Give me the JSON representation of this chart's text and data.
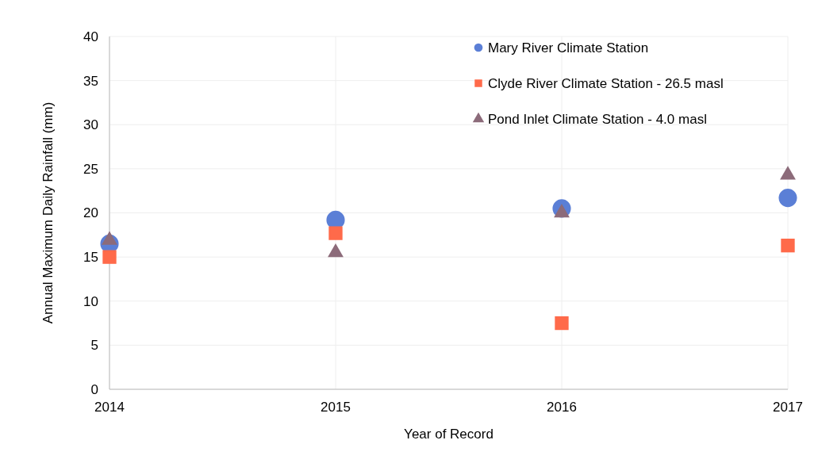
{
  "chart_data": {
    "type": "scatter",
    "xlabel": "Year of Record",
    "ylabel": "Annual Maximum Daily Rainfall (mm)",
    "x": [
      2014,
      2015,
      2016,
      2017
    ],
    "xlim": [
      2014,
      2017
    ],
    "xticks": [
      2014,
      2015,
      2016,
      2017
    ],
    "ylim": [
      0,
      40
    ],
    "yticks": [
      0,
      5,
      10,
      15,
      20,
      25,
      30,
      35,
      40
    ],
    "grid": true,
    "legend": "top right",
    "series": [
      {
        "name": "Mary River Climate Station",
        "color": "#5b7fd6",
        "marker": "circle",
        "values": [
          16.5,
          19.2,
          20.5,
          21.7
        ]
      },
      {
        "name": "Clyde River Climate Station - 26.5 masl",
        "color": "#ff6a4a",
        "marker": "square",
        "values": [
          15.0,
          17.7,
          7.5,
          16.3
        ]
      },
      {
        "name": "Pond Inlet Climate Station - 4.0 masl",
        "color": "#8c6b7a",
        "marker": "triangle",
        "values": [
          16.9,
          15.5,
          20.0,
          24.3
        ]
      }
    ]
  }
}
